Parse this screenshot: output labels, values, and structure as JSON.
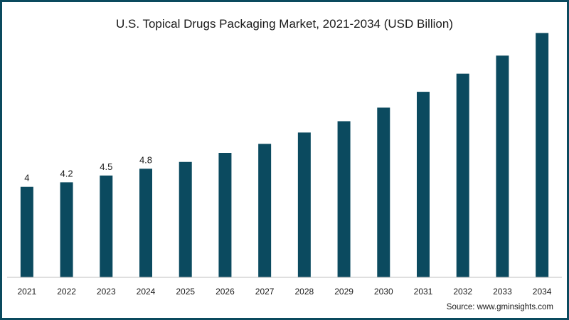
{
  "title": "U.S. Topical Drugs Packaging Market, 2021-2034 (USD Billion)",
  "source": "Source: www.gminsights.com",
  "colors": {
    "bar": "#0b4a5f",
    "border": "#0a4a5e"
  },
  "chart_data": {
    "type": "bar",
    "title": "U.S. Topical Drugs Packaging Market, 2021-2034 (USD Billion)",
    "xlabel": "",
    "ylabel": "",
    "categories": [
      "2021",
      "2022",
      "2023",
      "2024",
      "2025",
      "2026",
      "2027",
      "2028",
      "2029",
      "2030",
      "2031",
      "2032",
      "2033",
      "2034"
    ],
    "values": [
      4,
      4.2,
      4.5,
      4.8,
      5.1,
      5.5,
      5.9,
      6.4,
      6.9,
      7.5,
      8.2,
      9.0,
      9.8,
      10.8
    ],
    "data_labels": [
      "4",
      "4.2",
      "4.5",
      "4.8",
      null,
      null,
      null,
      null,
      null,
      null,
      null,
      null,
      null,
      null
    ],
    "ylim": [
      0,
      11
    ],
    "grid": false,
    "legend": "none"
  }
}
